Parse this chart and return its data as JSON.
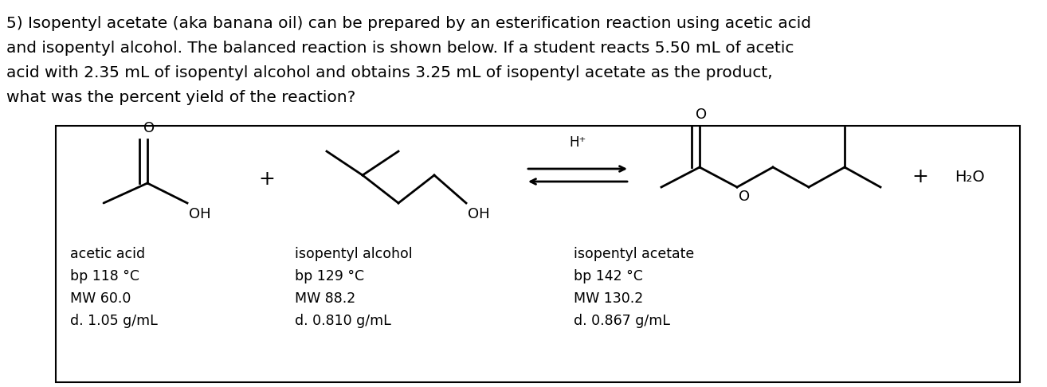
{
  "background_color": "#ffffff",
  "text_color": "#000000",
  "paragraph_lines": [
    "5) Isopentyl acetate (aka banana oil) can be prepared by an esterification reaction using acetic acid",
    "and isopentyl alcohol. The balanced reaction is shown below. If a student reacts 5.50 mL of acetic",
    "acid with 2.35 mL of isopentyl alcohol and obtains 3.25 mL of isopentyl acetate as the product,",
    "what was the percent yield of the reaction?"
  ],
  "acetic_acid_label": "acetic acid",
  "acetic_acid_bp": "bp 118 °C",
  "acetic_acid_mw": "MW 60.0",
  "acetic_acid_d": "d. 1.05 g/mL",
  "isopentyl_alcohol_label": "isopentyl alcohol",
  "isopentyl_alcohol_bp": "bp 129 °C",
  "isopentyl_alcohol_mw": "MW 88.2",
  "isopentyl_alcohol_d": "d. 0.810 g/mL",
  "isopentyl_acetate_label": "isopentyl acetate",
  "isopentyl_acetate_bp": "bp 142 °C",
  "isopentyl_acetate_mw": "MW 130.2",
  "isopentyl_acetate_d": "d. 0.867 g/mL",
  "h_plus": "H⁺",
  "h2o": "H₂O",
  "font_size_para": 14.5,
  "font_size_label": 12.5,
  "lw": 2.0
}
